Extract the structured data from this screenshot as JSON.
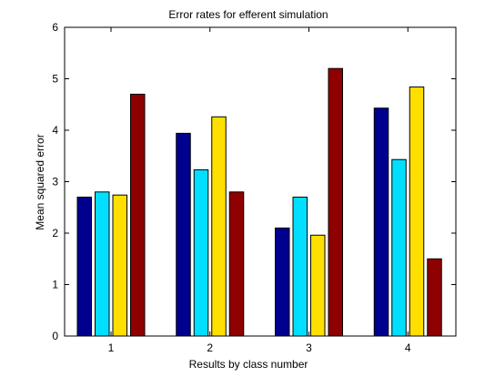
{
  "chart_data": {
    "type": "bar",
    "title": "Error rates for efferent simulation",
    "xlabel": "Results by class number",
    "ylabel": "Mean squared error",
    "categories": [
      "1",
      "2",
      "3",
      "4"
    ],
    "series": [
      {
        "values": [
          2.7,
          3.94,
          2.1,
          4.43
        ],
        "color": "#00008F"
      },
      {
        "values": [
          2.8,
          3.23,
          2.7,
          3.43
        ],
        "color": "#00DFFF"
      },
      {
        "values": [
          2.74,
          4.26,
          1.96,
          4.84
        ],
        "color": "#FFDF00"
      },
      {
        "values": [
          4.7,
          2.8,
          5.2,
          1.5
        ],
        "color": "#8F0000"
      }
    ],
    "ylim": [
      0,
      6
    ],
    "yticks": [
      0,
      1,
      2,
      3,
      4,
      5,
      6
    ],
    "grid": false,
    "legend": "none",
    "axes_box": true,
    "background": "#ffffff",
    "bar_edge_color": "#000000"
  }
}
